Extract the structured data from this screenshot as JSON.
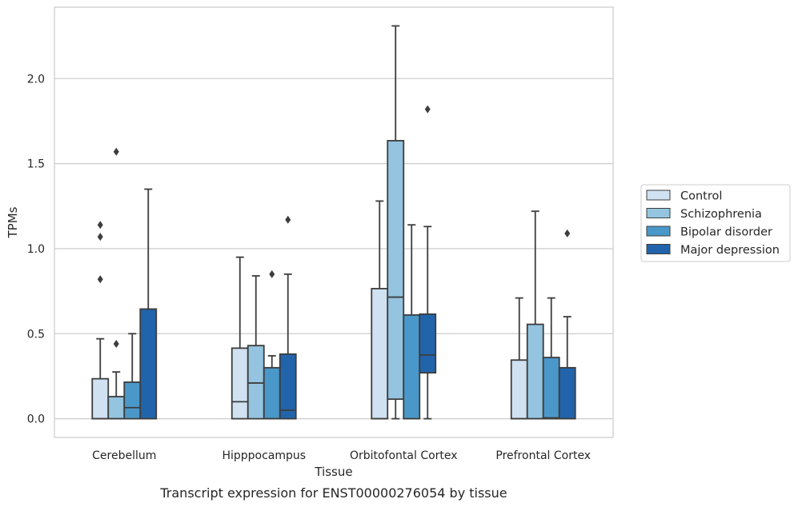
{
  "chart_data": {
    "type": "box",
    "title": "",
    "caption": "Transcript expression for ENST00000276054 by tissue",
    "xlabel": "Tissue",
    "ylabel": "TPMs",
    "ylim": [
      -0.11,
      2.42
    ],
    "yticks": [
      0.0,
      0.5,
      1.0,
      1.5,
      2.0
    ],
    "ytick_labels": [
      "0.0",
      "0.5",
      "1.0",
      "1.5",
      "2.0"
    ],
    "grid": "horizontal",
    "legend_position": "right",
    "categories": [
      "Cerebellum",
      "Hipppocampus",
      "Orbitofontal Cortex",
      "Prefrontal Cortex"
    ],
    "series": [
      {
        "name": "Control",
        "color": "#d0e1f2",
        "boxes": [
          {
            "whislo": 0.0,
            "q1": 0.0,
            "med": 0.0,
            "q3": 0.235,
            "whishi": 0.47,
            "fliers": [
              0.82,
              1.07,
              1.14
            ]
          },
          {
            "whislo": 0.0,
            "q1": 0.0,
            "med": 0.1,
            "q3": 0.415,
            "whishi": 0.95,
            "fliers": []
          },
          {
            "whislo": 0.0,
            "q1": 0.0,
            "med": 0.0,
            "q3": 0.765,
            "whishi": 1.28,
            "fliers": []
          },
          {
            "whislo": 0.0,
            "q1": 0.0,
            "med": 0.0,
            "q3": 0.345,
            "whishi": 0.71,
            "fliers": []
          }
        ]
      },
      {
        "name": "Schizophrenia",
        "color": "#94c4df",
        "boxes": [
          {
            "whislo": 0.0,
            "q1": 0.0,
            "med": 0.0,
            "q3": 0.13,
            "whishi": 0.275,
            "fliers": [
              0.44,
              1.57
            ]
          },
          {
            "whislo": 0.0,
            "q1": 0.0,
            "med": 0.21,
            "q3": 0.43,
            "whishi": 0.84,
            "fliers": []
          },
          {
            "whislo": 0.0,
            "q1": 0.115,
            "med": 0.715,
            "q3": 1.635,
            "whishi": 2.31,
            "fliers": []
          },
          {
            "whislo": 0.0,
            "q1": 0.0,
            "med": 0.0,
            "q3": 0.555,
            "whishi": 1.22,
            "fliers": []
          }
        ]
      },
      {
        "name": "Bipolar disorder",
        "color": "#4a98c9",
        "boxes": [
          {
            "whislo": 0.0,
            "q1": 0.0,
            "med": 0.065,
            "q3": 0.215,
            "whishi": 0.5,
            "fliers": []
          },
          {
            "whislo": 0.0,
            "q1": 0.0,
            "med": 0.0,
            "q3": 0.3,
            "whishi": 0.37,
            "fliers": [
              0.85
            ]
          },
          {
            "whislo": 0.0,
            "q1": 0.0,
            "med": 0.0,
            "q3": 0.61,
            "whishi": 1.14,
            "fliers": []
          },
          {
            "whislo": 0.0,
            "q1": 0.0,
            "med": 0.005,
            "q3": 0.36,
            "whishi": 0.71,
            "fliers": []
          }
        ]
      },
      {
        "name": "Major depression",
        "color": "#2164ab",
        "boxes": [
          {
            "whislo": 0.0,
            "q1": 0.0,
            "med": 0.0,
            "q3": 0.645,
            "whishi": 1.35,
            "fliers": []
          },
          {
            "whislo": 0.0,
            "q1": 0.0,
            "med": 0.05,
            "q3": 0.38,
            "whishi": 0.85,
            "fliers": [
              1.17
            ]
          },
          {
            "whislo": 0.0,
            "q1": 0.27,
            "med": 0.375,
            "q3": 0.615,
            "whishi": 1.13,
            "fliers": [
              1.82
            ]
          },
          {
            "whislo": 0.0,
            "q1": 0.0,
            "med": 0.0,
            "q3": 0.3,
            "whishi": 0.6,
            "fliers": [
              1.09
            ]
          }
        ]
      }
    ]
  }
}
